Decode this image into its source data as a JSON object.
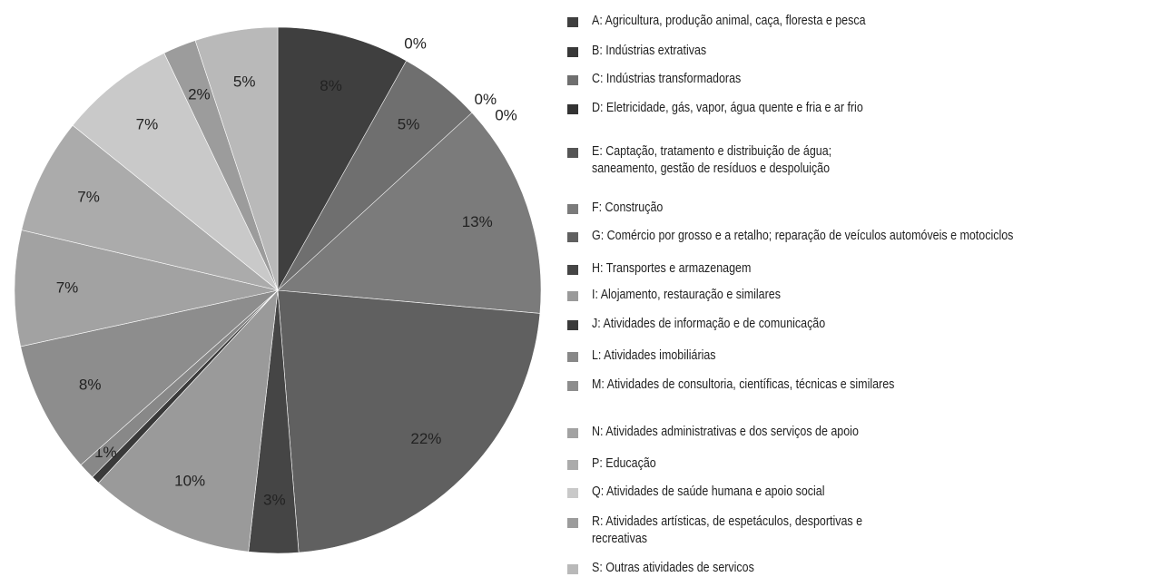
{
  "chart_data": {
    "type": "pie",
    "categories": [
      "A: Agricultura, produção animal, caça, floresta e pesca",
      "B: Indústrias extrativas",
      "C: Indústrias transformadoras",
      "D: Eletricidade, gás, vapor, água quente e fria e ar frio",
      "E: Captação, tratamento e distribuição de água;\nsaneamento, gestão de resíduos e despoluição",
      "F: Construção",
      "G: Comércio por grosso e a retalho; reparação de veículos automóveis e motociclos",
      "H: Transportes e armazenagem",
      "I: Alojamento, restauração e similares",
      "J: Atividades de informação e de comunicação",
      "L: Atividades imobiliárias",
      "M: Atividades de consultoria, científicas, técnicas e similares",
      "N: Atividades administrativas e dos serviços de apoio",
      "P: Educação",
      "Q: Atividades de saúde humana e apoio social",
      "R: Atividades artísticas, de espetáculos, desportivas e\nrecreativas",
      "S: Outras atividades de servicos"
    ],
    "values": [
      8,
      0,
      5,
      0,
      0,
      13,
      22,
      3,
      10,
      0.5,
      1,
      8,
      7,
      7,
      7,
      2,
      5
    ],
    "value_labels": [
      "8%",
      "0%",
      "5%",
      "0%",
      "0%",
      "13%",
      "22%",
      "3%",
      "10%",
      null,
      "1%",
      "8%",
      "7%",
      "7%",
      "7%",
      "2%",
      "5%"
    ],
    "colors": [
      "#3f3f3f",
      "#383838",
      "#6f6f6f",
      "#333333",
      "#555555",
      "#7b7b7b",
      "#606060",
      "#454545",
      "#9a9a9a",
      "#3a3a3a",
      "#888888",
      "#8d8d8d",
      "#a2a2a2",
      "#ababab",
      "#c9c9c9",
      "#9c9c9c",
      "#b9b9b9"
    ]
  }
}
